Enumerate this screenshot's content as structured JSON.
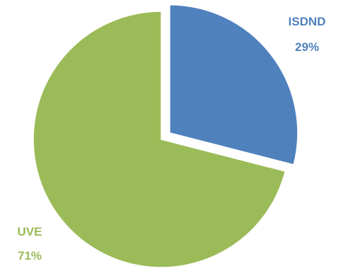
{
  "chart_data": {
    "type": "pie",
    "title": "",
    "slices": [
      {
        "label": "ISDND",
        "value": 29,
        "value_label": "29%",
        "color": "#4F81BD",
        "exploded": true
      },
      {
        "label": "UVE",
        "value": 71,
        "value_label": "71%",
        "color": "#9BBB59",
        "exploded": false
      }
    ],
    "start_angle_deg": 0,
    "direction": "clockwise",
    "legend": "none",
    "label_color_matches_slice": true
  }
}
